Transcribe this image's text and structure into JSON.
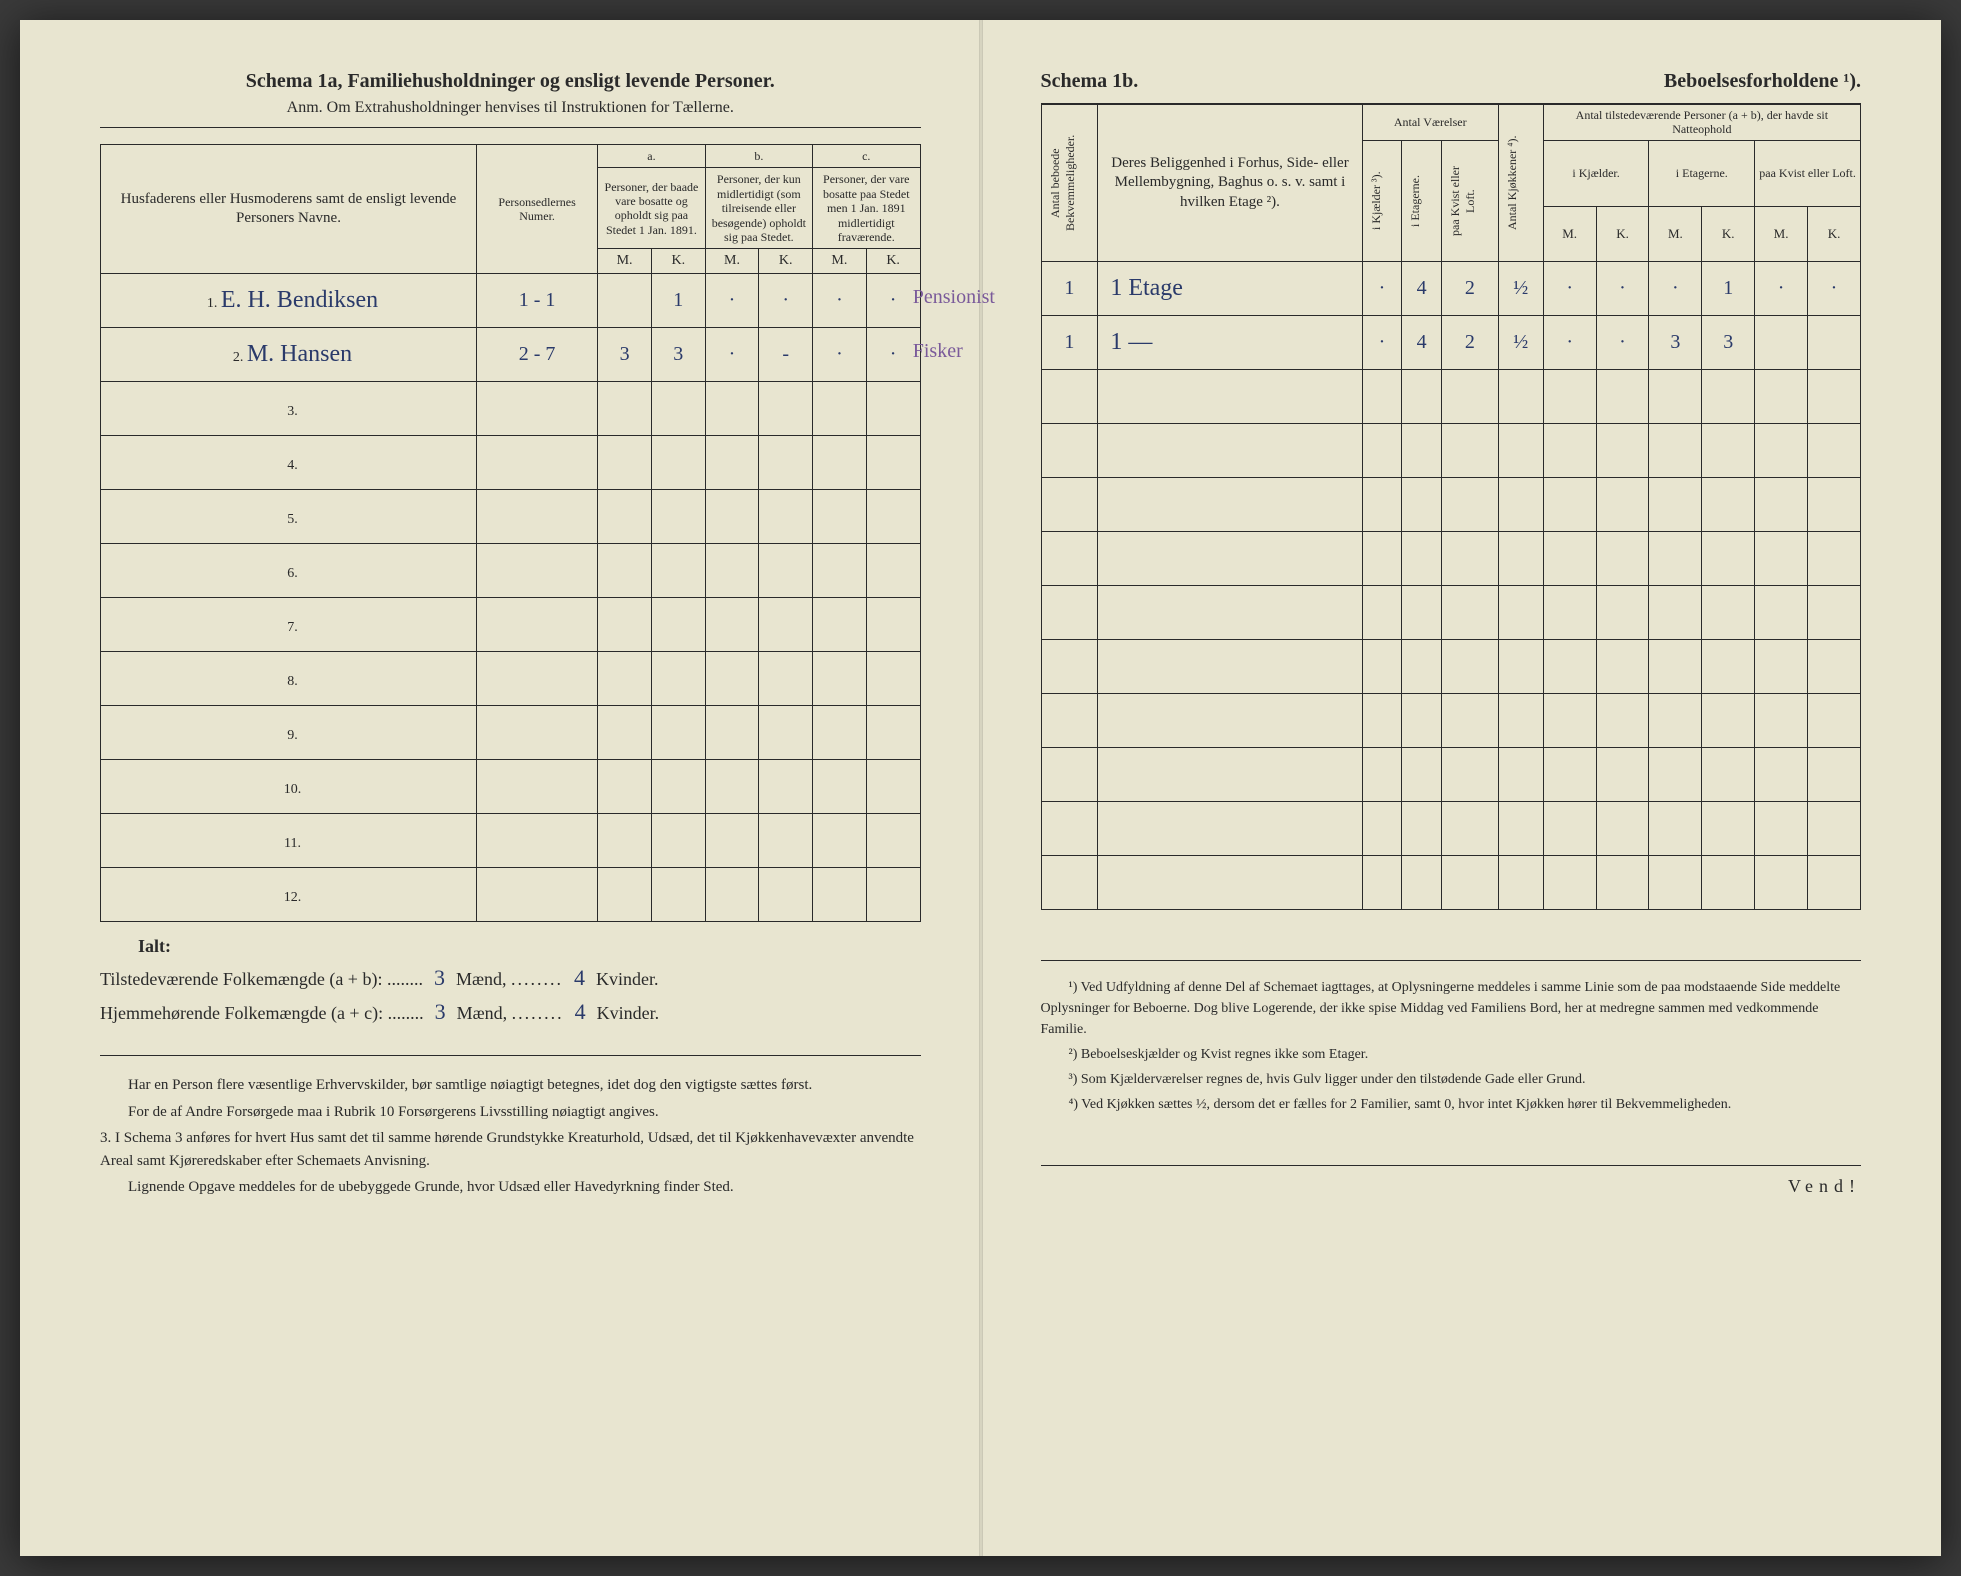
{
  "left": {
    "schema_title": "Schema 1a,",
    "schema_subject": "Familiehusholdninger og ensligt levende Personer.",
    "anm_label": "Anm.",
    "anm_text": "Om Extrahusholdninger henvises til Instruktionen for Tællerne.",
    "head_name": "Husfaderens eller Husmoderens samt de ensligt levende Personers Navne.",
    "head_num": "Personsedlernes Numer.",
    "head_a": "a.",
    "head_b": "b.",
    "head_c": "c.",
    "head_a_text": "Personer, der baade vare bosatte og opholdt sig paa Stedet 1 Jan. 1891.",
    "head_b_text": "Personer, der kun midlertidigt (som tilreisende eller besøgende) opholdt sig paa Stedet.",
    "head_c_text": "Personer, der vare bosatte paa Stedet men 1 Jan. 1891 midlertidigt fraværende.",
    "M": "M.",
    "K": "K.",
    "rows": [
      {
        "n": "1.",
        "name": "E. H. Bendiksen",
        "num": "1 - 1",
        "aM": "",
        "aK": "1",
        "bM": "·",
        "bK": "·",
        "cM": "·",
        "cK": "·",
        "occ": "Pensionist"
      },
      {
        "n": "2.",
        "name": "M. Hansen",
        "num": "2 - 7",
        "aM": "3",
        "aK": "3",
        "bM": "·",
        "bK": "-",
        "cM": "·",
        "cK": "·",
        "occ": "Fisker"
      },
      {
        "n": "3.",
        "name": "",
        "num": "",
        "aM": "",
        "aK": "",
        "bM": "",
        "bK": "",
        "cM": "",
        "cK": "",
        "occ": ""
      },
      {
        "n": "4.",
        "name": "",
        "num": "",
        "aM": "",
        "aK": "",
        "bM": "",
        "bK": "",
        "cM": "",
        "cK": "",
        "occ": ""
      },
      {
        "n": "5.",
        "name": "",
        "num": "",
        "aM": "",
        "aK": "",
        "bM": "",
        "bK": "",
        "cM": "",
        "cK": "",
        "occ": ""
      },
      {
        "n": "6.",
        "name": "",
        "num": "",
        "aM": "",
        "aK": "",
        "bM": "",
        "bK": "",
        "cM": "",
        "cK": "",
        "occ": ""
      },
      {
        "n": "7.",
        "name": "",
        "num": "",
        "aM": "",
        "aK": "",
        "bM": "",
        "bK": "",
        "cM": "",
        "cK": "",
        "occ": ""
      },
      {
        "n": "8.",
        "name": "",
        "num": "",
        "aM": "",
        "aK": "",
        "bM": "",
        "bK": "",
        "cM": "",
        "cK": "",
        "occ": ""
      },
      {
        "n": "9.",
        "name": "",
        "num": "",
        "aM": "",
        "aK": "",
        "bM": "",
        "bK": "",
        "cM": "",
        "cK": "",
        "occ": ""
      },
      {
        "n": "10.",
        "name": "",
        "num": "",
        "aM": "",
        "aK": "",
        "bM": "",
        "bK": "",
        "cM": "",
        "cK": "",
        "occ": ""
      },
      {
        "n": "11.",
        "name": "",
        "num": "",
        "aM": "",
        "aK": "",
        "bM": "",
        "bK": "",
        "cM": "",
        "cK": "",
        "occ": ""
      },
      {
        "n": "12.",
        "name": "",
        "num": "",
        "aM": "",
        "aK": "",
        "bM": "",
        "bK": "",
        "cM": "",
        "cK": "",
        "occ": ""
      }
    ],
    "ialt": "Ialt:",
    "tot_present_label": "Tilstedeværende Folkemængde (a + b): ........",
    "tot_present_m": "3",
    "tot_present_k": "4",
    "tot_home_label": "Hjemmehørende Folkemængde (a + c): ........",
    "tot_home_m": "3",
    "tot_home_k": "4",
    "maend": "Mænd,",
    "kvinder": "Kvinder.",
    "notes_p1": "Har en Person flere væsentlige Erhvervskilder, bør samtlige nøiagtigt betegnes, idet dog den vigtigste sættes først.",
    "notes_p2": "For de af Andre Forsørgede maa i Rubrik 10 Forsørgerens Livsstilling nøiagtigt angives.",
    "notes_p3_num": "3.",
    "notes_p3": "I Schema 3 anføres for hvert Hus samt det til samme hørende Grundstykke Kreaturhold, Udsæd, det til Kjøkkenhavevæxter anvendte Areal samt Kjøreredskaber efter Schemaets Anvisning.",
    "notes_p4": "Lignende Opgave meddeles for de ubebyggede Grunde, hvor Udsæd eller Havedyrkning finder Sted."
  },
  "right": {
    "schema_title": "Schema 1b.",
    "schema_subject": "Beboelsesforholdene ¹).",
    "head_bekv": "Antal beboede Bekvemmeligheder.",
    "head_belig": "Deres Beliggenhed i Forhus, Side- eller Mellembygning, Baghus o. s. v. samt i hvilken Etage ²).",
    "head_antal_vaer": "Antal Værelser",
    "head_kjaelder": "i Kjælder ³).",
    "head_etagerne": "i Etagerne.",
    "head_kvist": "paa Kvist eller Loft.",
    "head_kjokken": "Antal Kjøkkener ⁴).",
    "head_persons": "Antal tilstedeværende Personer (a + b), der havde sit Natteophold",
    "head_ikjaelder": "i Kjælder.",
    "head_ietagerne": "i Etagerne.",
    "head_paakvist": "paa Kvist eller Loft.",
    "M": "M.",
    "K": "K.",
    "rows": [
      {
        "bekv": "1",
        "belig": "1 Etage",
        "kj": "·",
        "et": "4",
        "kv": "2",
        "kok": "½",
        "kjM": "·",
        "kjK": "·",
        "etM": "·",
        "etK": "1",
        "kvM": "·",
        "kvK": "·"
      },
      {
        "bekv": "1",
        "belig": "1 —",
        "kj": "·",
        "et": "4",
        "kv": "2",
        "kok": "½",
        "kjM": "·",
        "kjK": "·",
        "etM": "3",
        "etK": "3",
        "kvM": "",
        "kvK": ""
      },
      {
        "bekv": "",
        "belig": "",
        "kj": "",
        "et": "",
        "kv": "",
        "kok": "",
        "kjM": "",
        "kjK": "",
        "etM": "",
        "etK": "",
        "kvM": "",
        "kvK": ""
      },
      {
        "bekv": "",
        "belig": "",
        "kj": "",
        "et": "",
        "kv": "",
        "kok": "",
        "kjM": "",
        "kjK": "",
        "etM": "",
        "etK": "",
        "kvM": "",
        "kvK": ""
      },
      {
        "bekv": "",
        "belig": "",
        "kj": "",
        "et": "",
        "kv": "",
        "kok": "",
        "kjM": "",
        "kjK": "",
        "etM": "",
        "etK": "",
        "kvM": "",
        "kvK": ""
      },
      {
        "bekv": "",
        "belig": "",
        "kj": "",
        "et": "",
        "kv": "",
        "kok": "",
        "kjM": "",
        "kjK": "",
        "etM": "",
        "etK": "",
        "kvM": "",
        "kvK": ""
      },
      {
        "bekv": "",
        "belig": "",
        "kj": "",
        "et": "",
        "kv": "",
        "kok": "",
        "kjM": "",
        "kjK": "",
        "etM": "",
        "etK": "",
        "kvM": "",
        "kvK": ""
      },
      {
        "bekv": "",
        "belig": "",
        "kj": "",
        "et": "",
        "kv": "",
        "kok": "",
        "kjM": "",
        "kjK": "",
        "etM": "",
        "etK": "",
        "kvM": "",
        "kvK": ""
      },
      {
        "bekv": "",
        "belig": "",
        "kj": "",
        "et": "",
        "kv": "",
        "kok": "",
        "kjM": "",
        "kjK": "",
        "etM": "",
        "etK": "",
        "kvM": "",
        "kvK": ""
      },
      {
        "bekv": "",
        "belig": "",
        "kj": "",
        "et": "",
        "kv": "",
        "kok": "",
        "kjM": "",
        "kjK": "",
        "etM": "",
        "etK": "",
        "kvM": "",
        "kvK": ""
      },
      {
        "bekv": "",
        "belig": "",
        "kj": "",
        "et": "",
        "kv": "",
        "kok": "",
        "kjM": "",
        "kjK": "",
        "etM": "",
        "etK": "",
        "kvM": "",
        "kvK": ""
      },
      {
        "bekv": "",
        "belig": "",
        "kj": "",
        "et": "",
        "kv": "",
        "kok": "",
        "kjM": "",
        "kjK": "",
        "etM": "",
        "etK": "",
        "kvM": "",
        "kvK": ""
      }
    ],
    "fn1": "¹) Ved Udfyldning af denne Del af Schemaet iagttages, at Oplysningerne meddeles i samme Linie som de paa modstaaende Side meddelte Oplysninger for Beboerne. Dog blive Logerende, der ikke spise Middag ved Familiens Bord, her at medregne sammen med vedkommende Familie.",
    "fn2": "²) Beboelseskjælder og Kvist regnes ikke som Etager.",
    "fn3": "³) Som Kjælderværelser regnes de, hvis Gulv ligger under den tilstødende Gade eller Grund.",
    "fn4": "⁴) Ved Kjøkken sættes ½, dersom det er fælles for 2 Familier, samt 0, hvor intet Kjøkken hører til Bekvemmeligheden.",
    "vend": "Vend!"
  },
  "style": {
    "paper_bg": "#e8e5d0",
    "ink": "#2a2a2a",
    "hand_ink": "#2a3a6a",
    "hand_purple": "#7a5a9a",
    "font_title_pt": 20,
    "font_body_pt": 15,
    "font_table_pt": 14,
    "font_hand_pt": 24
  }
}
